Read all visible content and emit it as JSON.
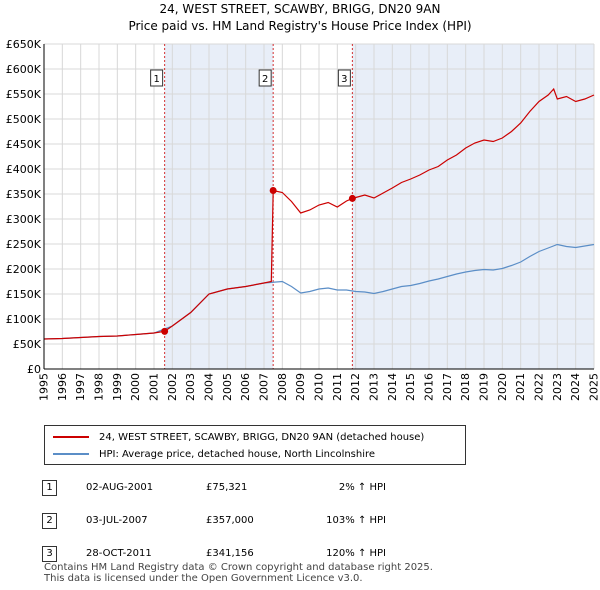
{
  "title_line1": "24, WEST STREET, SCAWBY, BRIGG, DN20 9AN",
  "title_line2": "Price paid vs. HM Land Registry's House Price Index (HPI)",
  "chart_data": {
    "type": "line",
    "title": "24, WEST STREET, SCAWBY, BRIGG, DN20 9AN — Price paid vs. HM Land Registry's House Price Index (HPI)",
    "xlabel": "",
    "ylabel": "",
    "xlim": [
      1995,
      2025
    ],
    "ylim": [
      0,
      650000
    ],
    "grid": true,
    "x_ticks": [
      1995,
      1996,
      1997,
      1998,
      1999,
      2000,
      2001,
      2002,
      2003,
      2004,
      2005,
      2006,
      2007,
      2008,
      2009,
      2010,
      2011,
      2012,
      2013,
      2014,
      2015,
      2016,
      2017,
      2018,
      2019,
      2020,
      2021,
      2022,
      2023,
      2024,
      2025
    ],
    "y_ticks": [
      {
        "value": 0,
        "label": "£0"
      },
      {
        "value": 50000,
        "label": "£50K"
      },
      {
        "value": 100000,
        "label": "£100K"
      },
      {
        "value": 150000,
        "label": "£150K"
      },
      {
        "value": 200000,
        "label": "£200K"
      },
      {
        "value": 250000,
        "label": "£250K"
      },
      {
        "value": 300000,
        "label": "£300K"
      },
      {
        "value": 350000,
        "label": "£350K"
      },
      {
        "value": 400000,
        "label": "£400K"
      },
      {
        "value": 450000,
        "label": "£450K"
      },
      {
        "value": 500000,
        "label": "£500K"
      },
      {
        "value": 550000,
        "label": "£550K"
      },
      {
        "value": 600000,
        "label": "£600K"
      },
      {
        "value": 650000,
        "label": "£650K"
      }
    ],
    "shaded_ranges": [
      [
        2001.58,
        2007.5
      ],
      [
        2011.82,
        2025
      ]
    ],
    "series": [
      {
        "name": "24, WEST STREET, SCAWBY, BRIGG, DN20 9AN (detached house)",
        "color": "#cc0000",
        "x": [
          1995,
          1996,
          1997,
          1998,
          1999,
          2000,
          2001,
          2001.58,
          2002,
          2003,
          2004,
          2005,
          2006,
          2007,
          2007.4,
          2007.5,
          2008,
          2008.5,
          2009,
          2009.5,
          2010,
          2010.5,
          2011,
          2011.5,
          2011.82,
          2012,
          2012.5,
          2013,
          2013.5,
          2014,
          2014.5,
          2015,
          2015.5,
          2016,
          2016.5,
          2017,
          2017.5,
          2018,
          2018.5,
          2019,
          2019.5,
          2020,
          2020.5,
          2021,
          2021.5,
          2022,
          2022.5,
          2022.8,
          2023,
          2023.5,
          2024,
          2024.5,
          2025
        ],
        "values": [
          60000,
          61000,
          63000,
          65000,
          66000,
          69000,
          72000,
          75321,
          86000,
          113000,
          150000,
          160000,
          165000,
          172000,
          175000,
          357000,
          353000,
          335000,
          312000,
          318000,
          328000,
          333000,
          324000,
          336000,
          341156,
          343000,
          348000,
          342000,
          352000,
          362000,
          373000,
          380000,
          388000,
          398000,
          405000,
          418000,
          428000,
          442000,
          452000,
          458000,
          455000,
          462000,
          475000,
          492000,
          515000,
          535000,
          548000,
          560000,
          540000,
          545000,
          535000,
          540000,
          548000
        ]
      },
      {
        "name": "HPI: Average price, detached house, North Lincolnshire",
        "color": "#5b8ec7",
        "x": [
          1995,
          1996,
          1997,
          1998,
          1999,
          2000,
          2001,
          2002,
          2003,
          2004,
          2005,
          2006,
          2007,
          2008,
          2008.5,
          2009,
          2009.5,
          2010,
          2010.5,
          2011,
          2011.5,
          2012,
          2012.5,
          2013,
          2013.5,
          2014,
          2014.5,
          2015,
          2015.5,
          2016,
          2016.5,
          2017,
          2017.5,
          2018,
          2018.5,
          2019,
          2019.5,
          2020,
          2020.5,
          2021,
          2021.5,
          2022,
          2022.5,
          2023,
          2023.5,
          2024,
          2024.5,
          2025
        ],
        "values": [
          60000,
          61000,
          63000,
          65000,
          66000,
          69000,
          72000,
          86000,
          113000,
          150000,
          160000,
          165000,
          172000,
          175000,
          165000,
          152000,
          155000,
          160000,
          162000,
          158000,
          158000,
          155000,
          154000,
          151000,
          155000,
          160000,
          165000,
          167000,
          171000,
          176000,
          180000,
          185000,
          190000,
          194000,
          197000,
          199000,
          198000,
          201000,
          207000,
          214000,
          225000,
          235000,
          242000,
          249000,
          245000,
          243000,
          246000,
          249000
        ]
      }
    ],
    "sales": [
      {
        "id": "1",
        "x": 2001.58,
        "price": 75321
      },
      {
        "id": "2",
        "x": 2007.5,
        "price": 357000
      },
      {
        "id": "3",
        "x": 2011.82,
        "price": 341156
      }
    ]
  },
  "legend": {
    "property_label": "24, WEST STREET, SCAWBY, BRIGG, DN20 9AN (detached house)",
    "hpi_label": "HPI: Average price, detached house, North Lincolnshire",
    "property_color": "#cc0000",
    "hpi_color": "#5b8ec7"
  },
  "transactions": [
    {
      "num": "1",
      "date": "02-AUG-2001",
      "price": "£75,321",
      "hpi": "2% ↑ HPI"
    },
    {
      "num": "2",
      "date": "03-JUL-2007",
      "price": "£357,000",
      "hpi": "103% ↑ HPI"
    },
    {
      "num": "3",
      "date": "28-OCT-2011",
      "price": "£341,156",
      "hpi": "120% ↑ HPI"
    }
  ],
  "footer": {
    "line1": "Contains HM Land Registry data © Crown copyright and database right 2025.",
    "line2": "This data is licensed under the Open Government Licence v3.0."
  }
}
